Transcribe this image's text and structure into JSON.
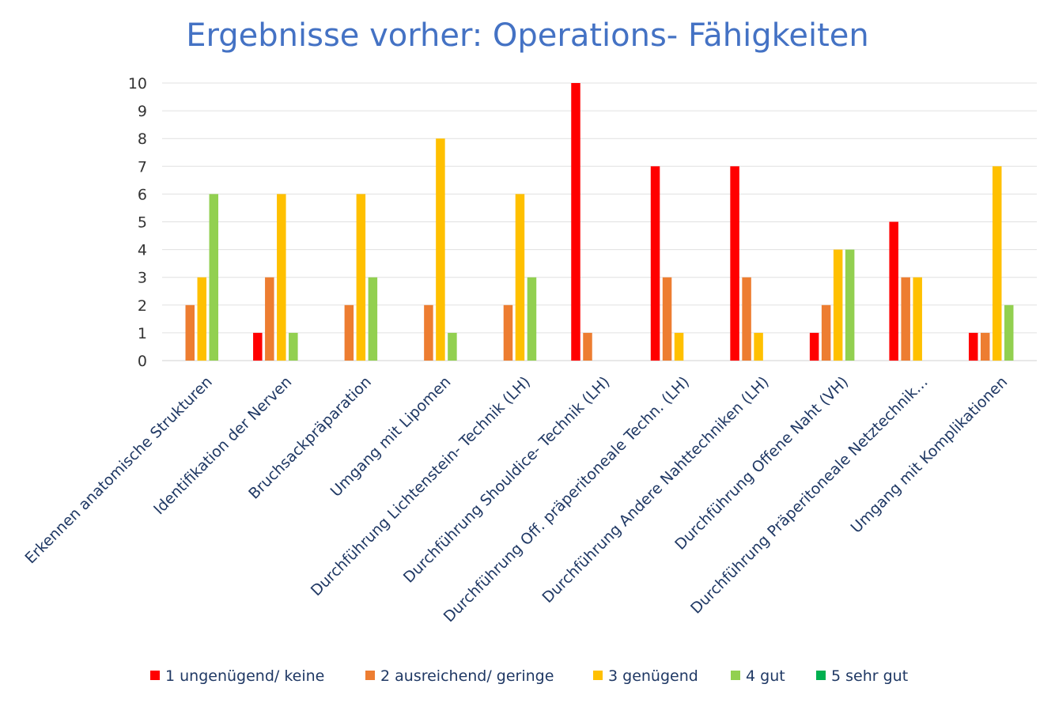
{
  "chart_data": {
    "type": "bar",
    "title": "Ergebnisse vorher: Operations- Fähigkeiten",
    "categories": [
      "Erkennen anatomische Strukturen",
      "Identifikation der Nerven",
      "Bruchsackpräparation",
      "Umgang mit Lipomen",
      "Durchführung Lichtenstein- Technik (LH)",
      "Durchführung Shouldice- Technik (LH)",
      "Durchführung Off. präperitoneale Techn. (LH)",
      "Durchführung Andere Nahttechniken (LH)",
      "Durchführung Offene Naht (VH)",
      "Durchführung Präperitoneale Netztechnik…",
      "Umgang mit Komplikationen"
    ],
    "series": [
      {
        "name": "1 ungenügend/ keine",
        "color": "#ff0000",
        "values": [
          0,
          1,
          0,
          0,
          0,
          10,
          7,
          7,
          1,
          5,
          1
        ]
      },
      {
        "name": "2 ausreichend/ geringe",
        "color": "#ed7d31",
        "values": [
          2,
          3,
          2,
          2,
          2,
          1,
          3,
          3,
          2,
          3,
          1
        ]
      },
      {
        "name": "3 genügend",
        "color": "#ffc000",
        "values": [
          3,
          6,
          6,
          8,
          6,
          0,
          1,
          1,
          4,
          3,
          7
        ]
      },
      {
        "name": "4 gut",
        "color": "#92d050",
        "values": [
          6,
          1,
          3,
          1,
          3,
          0,
          0,
          0,
          4,
          0,
          2
        ]
      },
      {
        "name": "5 sehr gut",
        "color": "#00b050",
        "values": [
          0,
          0,
          0,
          0,
          0,
          0,
          0,
          0,
          0,
          0,
          0
        ]
      }
    ],
    "ylim": [
      0,
      10
    ],
    "yticks": [
      0,
      1,
      2,
      3,
      4,
      5,
      6,
      7,
      8,
      9,
      10
    ],
    "grid": true,
    "legend_position": "bottom"
  }
}
